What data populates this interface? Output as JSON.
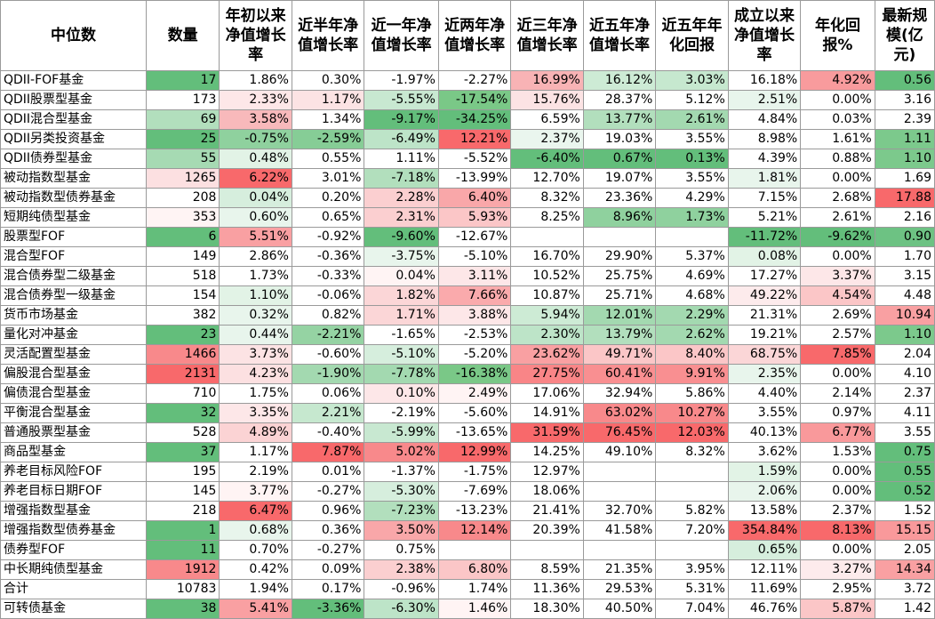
{
  "headers": [
    "中位数",
    "数量",
    "年初以来净值增长率",
    "近半年净值增长率",
    "近一年净值增长率",
    "近两年净值增长率",
    "近三年净值增长率",
    "近五年净值增长率",
    "近五年年化回报",
    "成立以来净值增长率",
    "年化回报%",
    "最新规模(亿元)"
  ],
  "rows": [
    {
      "cells": [
        "QDII-FOF基金",
        "17",
        "1.86%",
        "0.30%",
        "-1.97%",
        "-2.27%",
        "16.99%",
        "16.12%",
        "3.03%",
        "16.18%",
        "4.92%",
        "0.56"
      ],
      "colors": [
        "#ffffff",
        "#63be7b",
        "#ffffff",
        "#ffffff",
        "#ffffff",
        "#ffffff",
        "#f8b3b5",
        "#cdebd5",
        "#c6e8cf",
        "#ffffff",
        "#f89b9d",
        "#63be7b"
      ]
    },
    {
      "cells": [
        "QDII股票型基金",
        "173",
        "2.33%",
        "1.17%",
        "-5.55%",
        "-17.54%",
        "15.76%",
        "28.37%",
        "5.12%",
        "2.51%",
        "0.00%",
        "3.16"
      ],
      "colors": [
        "#ffffff",
        "#ffffff",
        "#fde7e8",
        "#fce3e4",
        "#c8e8d1",
        "#7ac887",
        "#fce3e4",
        "#ffffff",
        "#ffffff",
        "#e8f5ec",
        "#ffffff",
        "#ffffff"
      ]
    },
    {
      "cells": [
        "QDII混合型基金",
        "69",
        "3.58%",
        "1.34%",
        "-9.17%",
        "-34.25%",
        "6.59%",
        "13.77%",
        "2.61%",
        "4.84%",
        "0.03%",
        "2.39"
      ],
      "colors": [
        "#ffffff",
        "#b2dfbd",
        "#f8b9bb",
        "#ffffff",
        "#63be7b",
        "#63be7b",
        "#ffffff",
        "#b2dfbd",
        "#a3d9b0",
        "#ffffff",
        "#ffffff",
        "#ffffff"
      ]
    },
    {
      "cells": [
        "QDII另类投资基金",
        "25",
        "-0.75%",
        "-2.59%",
        "-6.49%",
        "12.21%",
        "2.37%",
        "19.03%",
        "3.55%",
        "8.98%",
        "1.61%",
        "1.11"
      ],
      "colors": [
        "#ffffff",
        "#63be7b",
        "#8fd19e",
        "#86cd96",
        "#bde4c8",
        "#f8696b",
        "#eaf6ee",
        "#ffffff",
        "#ffffff",
        "#ffffff",
        "#ffffff",
        "#7cc98c"
      ]
    },
    {
      "cells": [
        "QDII债券型基金",
        "55",
        "0.48%",
        "0.55%",
        "1.11%",
        "-5.52%",
        "-6.40%",
        "0.67%",
        "0.13%",
        "4.39%",
        "0.88%",
        "1.10"
      ],
      "colors": [
        "#ffffff",
        "#a6dab3",
        "#e2f3e6",
        "#ffffff",
        "#ffffff",
        "#ffffff",
        "#63be7b",
        "#63be7b",
        "#63be7b",
        "#ffffff",
        "#ffffff",
        "#7cc98c"
      ]
    },
    {
      "cells": [
        "被动指数型基金",
        "1265",
        "6.22%",
        "3.01%",
        "-7.18%",
        "-13.99%",
        "12.70%",
        "19.07%",
        "3.55%",
        "1.81%",
        "0.00%",
        "1.69"
      ],
      "colors": [
        "#ffffff",
        "#fce0e1",
        "#f8696b",
        "#ffffff",
        "#b2dfbd",
        "#ffffff",
        "#ffffff",
        "#ffffff",
        "#ffffff",
        "#e8f5ec",
        "#ffffff",
        "#ffffff"
      ]
    },
    {
      "cells": [
        "被动指数型债券基金",
        "208",
        "0.04%",
        "0.20%",
        "2.28%",
        "6.40%",
        "8.32%",
        "23.36%",
        "4.29%",
        "7.15%",
        "2.68%",
        "17.88"
      ],
      "colors": [
        "#ffffff",
        "#ffffff",
        "#d6eedd",
        "#ffffff",
        "#fbcfd0",
        "#f9a7a9",
        "#ffffff",
        "#ffffff",
        "#ffffff",
        "#ffffff",
        "#ffffff",
        "#f8696b"
      ]
    },
    {
      "cells": [
        "短期纯债型基金",
        "353",
        "0.60%",
        "0.65%",
        "2.31%",
        "5.93%",
        "8.25%",
        "8.96%",
        "1.73%",
        "5.21%",
        "2.61%",
        "2.16"
      ],
      "colors": [
        "#ffffff",
        "#fff4f4",
        "#e8f5ec",
        "#ffffff",
        "#fbcfd0",
        "#fbc6c7",
        "#ffffff",
        "#8fd19e",
        "#8fd19e",
        "#ffffff",
        "#ffffff",
        "#ffffff"
      ]
    },
    {
      "cells": [
        "股票型FOF",
        "6",
        "5.51%",
        "-0.92%",
        "-9.60%",
        "-12.67%",
        "",
        "",
        "",
        "-11.72%",
        "-9.62%",
        "0.90"
      ],
      "colors": [
        "#ffffff",
        "#63be7b",
        "#f9a0a2",
        "#ffffff",
        "#63be7b",
        "#ffffff",
        "#ffffff",
        "#ffffff",
        "#ffffff",
        "#63be7b",
        "#63be7b",
        "#6dc283"
      ]
    },
    {
      "cells": [
        "混合型FOF",
        "149",
        "2.86%",
        "-0.36%",
        "-3.75%",
        "-5.10%",
        "16.70%",
        "29.90%",
        "5.37%",
        "0.08%",
        "0.00%",
        "1.70"
      ],
      "colors": [
        "#ffffff",
        "#ffffff",
        "#ffffff",
        "#ffffff",
        "#e8f5ec",
        "#ffffff",
        "#ffffff",
        "#ffffff",
        "#ffffff",
        "#e2f3e6",
        "#ffffff",
        "#ffffff"
      ]
    },
    {
      "cells": [
        "混合债券型二级基金",
        "518",
        "1.73%",
        "-0.33%",
        "0.04%",
        "3.11%",
        "10.52%",
        "25.75%",
        "4.69%",
        "17.27%",
        "3.37%",
        "3.15"
      ],
      "colors": [
        "#ffffff",
        "#ffffff",
        "#ffffff",
        "#ffffff",
        "#fff4f4",
        "#fde7e8",
        "#ffffff",
        "#ffffff",
        "#ffffff",
        "#ffffff",
        "#fde7e8",
        "#ffffff"
      ]
    },
    {
      "cells": [
        "混合债券型一级基金",
        "154",
        "1.10%",
        "-0.06%",
        "1.82%",
        "7.66%",
        "10.87%",
        "25.71%",
        "4.68%",
        "49.22%",
        "4.54%",
        "4.48"
      ],
      "colors": [
        "#ffffff",
        "#ffffff",
        "#e2f3e6",
        "#ffffff",
        "#fbd6d7",
        "#faaaac",
        "#ffffff",
        "#ffffff",
        "#ffffff",
        "#fdebec",
        "#fbc6c7",
        "#ffffff"
      ]
    },
    {
      "cells": [
        "货币市场基金",
        "382",
        "0.32%",
        "0.82%",
        "1.71%",
        "3.88%",
        "5.94%",
        "12.01%",
        "2.29%",
        "21.31%",
        "2.69%",
        "10.94"
      ],
      "colors": [
        "#ffffff",
        "#ffffff",
        "#e8f5ec",
        "#ffffff",
        "#fbd6d7",
        "#fde7e8",
        "#cdebd5",
        "#a3d9b0",
        "#a3d9b0",
        "#ffffff",
        "#ffffff",
        "#f9a0a2"
      ]
    },
    {
      "cells": [
        "量化对冲基金",
        "23",
        "0.44%",
        "-2.21%",
        "-1.65%",
        "-2.53%",
        "2.30%",
        "13.79%",
        "2.62%",
        "19.21%",
        "2.57%",
        "1.10"
      ],
      "colors": [
        "#ffffff",
        "#63be7b",
        "#e8f5ec",
        "#95d3a3",
        "#ffffff",
        "#ffffff",
        "#bde4c8",
        "#b2dfbd",
        "#a3d9b0",
        "#ffffff",
        "#ffffff",
        "#7cc98c"
      ]
    },
    {
      "cells": [
        "灵活配置型基金",
        "1466",
        "3.73%",
        "-0.60%",
        "-5.10%",
        "-5.20%",
        "23.62%",
        "49.71%",
        "8.40%",
        "68.75%",
        "7.85%",
        "2.04"
      ],
      "colors": [
        "#ffffff",
        "#f8898b",
        "#fce3e4",
        "#ffffff",
        "#d6eedd",
        "#ffffff",
        "#f9a0a2",
        "#fbc6c7",
        "#fbc6c7",
        "#fbd6d7",
        "#f8696b",
        "#ffffff"
      ]
    },
    {
      "cells": [
        "偏股混合型基金",
        "2131",
        "4.23%",
        "-1.90%",
        "-7.78%",
        "-16.38%",
        "27.75%",
        "60.41%",
        "9.91%",
        "2.35%",
        "0.00%",
        "4.10"
      ],
      "colors": [
        "#ffffff",
        "#f8696b",
        "#fce0e1",
        "#a3d9b0",
        "#a3d9b0",
        "#7ac887",
        "#f98587",
        "#f98f91",
        "#f98f91",
        "#e8f5ec",
        "#ffffff",
        "#ffffff"
      ]
    },
    {
      "cells": [
        "偏债混合型基金",
        "710",
        "1.75%",
        "0.06%",
        "0.10%",
        "2.49%",
        "17.06%",
        "32.94%",
        "5.86%",
        "4.40%",
        "2.14%",
        "2.37"
      ],
      "colors": [
        "#ffffff",
        "#ffffff",
        "#ffffff",
        "#ffffff",
        "#fde7e8",
        "#fff4f4",
        "#ffffff",
        "#ffffff",
        "#ffffff",
        "#ffffff",
        "#ffffff",
        "#ffffff"
      ]
    },
    {
      "cells": [
        "平衡混合型基金",
        "32",
        "3.35%",
        "2.21%",
        "-2.19%",
        "-5.60%",
        "14.91%",
        "63.02%",
        "10.27%",
        "3.55%",
        "0.97%",
        "4.11"
      ],
      "colors": [
        "#ffffff",
        "#63be7b",
        "#fde7e8",
        "#c6e8cf",
        "#ffffff",
        "#ffffff",
        "#ffffff",
        "#f8898b",
        "#f8898b",
        "#ffffff",
        "#ffffff",
        "#ffffff"
      ]
    },
    {
      "cells": [
        "普通股票型基金",
        "528",
        "4.89%",
        "-0.40%",
        "-5.99%",
        "-13.65%",
        "31.59%",
        "76.45%",
        "12.03%",
        "40.13%",
        "6.77%",
        "3.55"
      ],
      "colors": [
        "#ffffff",
        "#ffffff",
        "#fbd3d4",
        "#ffffff",
        "#c8e8d1",
        "#ffffff",
        "#f8696b",
        "#f8696b",
        "#f8696b",
        "#ffffff",
        "#f9999b",
        "#ffffff"
      ]
    },
    {
      "cells": [
        "商品型基金",
        "37",
        "1.17%",
        "7.87%",
        "5.02%",
        "12.99%",
        "14.25%",
        "49.10%",
        "8.32%",
        "3.62%",
        "1.53%",
        "0.75"
      ],
      "colors": [
        "#ffffff",
        "#63be7b",
        "#ffffff",
        "#f8696b",
        "#f8898b",
        "#f8696b",
        "#ffffff",
        "#ffffff",
        "#ffffff",
        "#ffffff",
        "#ffffff",
        "#63be7b"
      ]
    },
    {
      "cells": [
        "养老目标风险FOF",
        "195",
        "2.19%",
        "0.01%",
        "-1.37%",
        "-1.75%",
        "12.97%",
        "",
        "",
        "1.59%",
        "0.00%",
        "0.55"
      ],
      "colors": [
        "#ffffff",
        "#ffffff",
        "#ffffff",
        "#ffffff",
        "#ffffff",
        "#ffffff",
        "#ffffff",
        "#ffffff",
        "#ffffff",
        "#e2f3e6",
        "#ffffff",
        "#63be7b"
      ]
    },
    {
      "cells": [
        "养老目标日期FOF",
        "145",
        "3.77%",
        "-0.27%",
        "-5.30%",
        "-7.69%",
        "18.06%",
        "",
        "",
        "2.06%",
        "0.00%",
        "0.52"
      ],
      "colors": [
        "#ffffff",
        "#ffffff",
        "#fff4f4",
        "#ffffff",
        "#d6eedd",
        "#ffffff",
        "#ffffff",
        "#ffffff",
        "#ffffff",
        "#e8f5ec",
        "#ffffff",
        "#63be7b"
      ]
    },
    {
      "cells": [
        "增强指数型基金",
        "218",
        "6.47%",
        "0.96%",
        "-7.23%",
        "-13.23%",
        "21.41%",
        "32.70%",
        "5.82%",
        "13.58%",
        "2.37%",
        "1.52"
      ],
      "colors": [
        "#ffffff",
        "#ffffff",
        "#f8696b",
        "#ffffff",
        "#b2dfbd",
        "#ffffff",
        "#ffffff",
        "#ffffff",
        "#ffffff",
        "#ffffff",
        "#ffffff",
        "#ffffff"
      ]
    },
    {
      "cells": [
        "增强指数型债券基金",
        "1",
        "0.68%",
        "0.36%",
        "3.50%",
        "12.14%",
        "20.39%",
        "41.58%",
        "7.20%",
        "354.84%",
        "8.13%",
        "15.15"
      ],
      "colors": [
        "#ffffff",
        "#63be7b",
        "#e8f5ec",
        "#ffffff",
        "#f9a7a9",
        "#f8898b",
        "#ffffff",
        "#ffffff",
        "#ffffff",
        "#f8696b",
        "#f8696b",
        "#f9999b"
      ]
    },
    {
      "cells": [
        "债券型FOF",
        "11",
        "0.70%",
        "-0.27%",
        "0.75%",
        "",
        "",
        "",
        "",
        "0.65%",
        "0.00%",
        "2.05"
      ],
      "colors": [
        "#ffffff",
        "#63be7b",
        "#ffffff",
        "#ffffff",
        "#ffffff",
        "#ffffff",
        "#ffffff",
        "#ffffff",
        "#ffffff",
        "#d6eedd",
        "#ffffff",
        "#ffffff"
      ]
    },
    {
      "cells": [
        "中长期纯债型基金",
        "1912",
        "0.42%",
        "0.09%",
        "2.38%",
        "6.80%",
        "8.59%",
        "21.35%",
        "3.95%",
        "12.11%",
        "3.27%",
        "14.34"
      ],
      "colors": [
        "#ffffff",
        "#f8898b",
        "#ffffff",
        "#ffffff",
        "#fbcfd0",
        "#fbc6c7",
        "#ffffff",
        "#ffffff",
        "#ffffff",
        "#ffffff",
        "#fdebec",
        "#f9a0a2"
      ]
    },
    {
      "cells": [
        "合计",
        "10783",
        "1.94%",
        "0.17%",
        "-0.96%",
        "1.74%",
        "11.36%",
        "29.53%",
        "5.31%",
        "11.69%",
        "2.95%",
        "3.72"
      ],
      "colors": [
        "#ffffff",
        "#ffffff",
        "#ffffff",
        "#ffffff",
        "#ffffff",
        "#ffffff",
        "#ffffff",
        "#ffffff",
        "#ffffff",
        "#ffffff",
        "#ffffff",
        "#ffffff"
      ]
    },
    {
      "cells": [
        "可转债基金",
        "38",
        "5.41%",
        "-3.36%",
        "-6.30%",
        "1.46%",
        "18.30%",
        "40.50%",
        "7.04%",
        "46.76%",
        "5.87%",
        "1.42"
      ],
      "colors": [
        "#ffffff",
        "#63be7b",
        "#f9a0a2",
        "#63be7b",
        "#bde4c8",
        "#fff4f4",
        "#ffffff",
        "#ffffff",
        "#ffffff",
        "#ffffff",
        "#fbc6c7",
        "#ffffff"
      ]
    }
  ]
}
